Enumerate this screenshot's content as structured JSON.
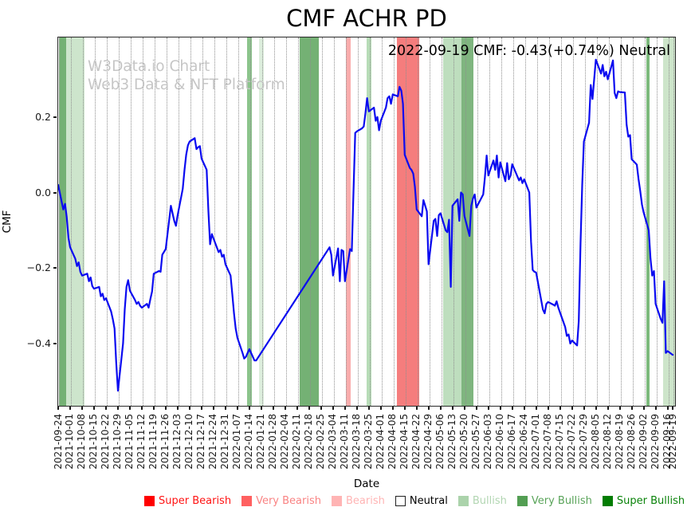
{
  "chart_data": {
    "type": "line",
    "title": "CMF ACHR PD",
    "annotation": "2022-09-19 CMF: -0.43(+0.74%) Neutral",
    "watermark_line1": "W3Data.io Chart",
    "watermark_line2": "Web3 Data & NFT Platform",
    "xlabel": "Date",
    "ylabel": "CMF",
    "grid": "vertical-dotted",
    "legend_position": "bottom",
    "line_color": "#0b0bf0",
    "ylim": [
      -0.568,
      0.412
    ],
    "ytick_values": [
      0.2,
      0.0,
      -0.2,
      -0.4
    ],
    "ytick_labels": [
      "0.2",
      "0.0",
      "−0.2",
      "−0.4"
    ],
    "x_base_date": "2021-09-24",
    "xtick_dates": [
      "2021-09-24",
      "2021-10-01",
      "2021-10-08",
      "2021-10-15",
      "2021-10-22",
      "2021-10-29",
      "2021-11-05",
      "2021-11-12",
      "2021-11-19",
      "2021-11-26",
      "2021-12-03",
      "2021-12-10",
      "2021-12-17",
      "2021-12-24",
      "2021-12-31",
      "2022-01-07",
      "2022-01-14",
      "2022-01-21",
      "2022-01-28",
      "2022-02-04",
      "2022-02-11",
      "2022-02-18",
      "2022-02-25",
      "2022-03-04",
      "2022-03-11",
      "2022-03-18",
      "2022-03-25",
      "2022-04-01",
      "2022-04-08",
      "2022-04-15",
      "2022-04-22",
      "2022-04-29",
      "2022-05-06",
      "2022-05-13",
      "2022-05-20",
      "2022-05-27",
      "2022-06-03",
      "2022-06-10",
      "2022-06-17",
      "2022-06-24",
      "2022-07-01",
      "2022-07-08",
      "2022-07-15",
      "2022-07-22",
      "2022-07-29",
      "2022-08-05",
      "2022-08-12",
      "2022-08-19",
      "2022-08-26",
      "2022-09-02",
      "2022-09-09",
      "2022-09-16",
      "2022-09-19"
    ],
    "legend": [
      {
        "label": "Super Bearish",
        "color": "#ff0000",
        "text_color": "#ff1414",
        "border": "#ff0000"
      },
      {
        "label": "Very Bearish",
        "color": "#ff6060",
        "text_color": "#f98383",
        "border": "#ff6060"
      },
      {
        "label": "Bearish",
        "color": "#ffb4b4",
        "text_color": "#ffb4b4",
        "border": "#ffb4b4"
      },
      {
        "label": "Neutral",
        "color": "#ffffff",
        "text_color": "#000000",
        "border": "#222222"
      },
      {
        "label": "Bullish",
        "color": "#abd3ab",
        "text_color": "#b2d6b2",
        "border": "#abd3ab"
      },
      {
        "label": "Very Bullish",
        "color": "#539e53",
        "text_color": "#5aa45a",
        "border": "#539e53"
      },
      {
        "label": "Super Bullish",
        "color": "#027d02",
        "text_color": "#0a830a",
        "border": "#027d02"
      }
    ],
    "bands": [
      {
        "from": "2021-09-24",
        "to": "2021-09-28",
        "level": "Very Bullish",
        "color": "#74b174"
      },
      {
        "from": "2021-09-28",
        "to": "2021-10-09",
        "level": "Bullish",
        "color": "#cde5cc"
      },
      {
        "from": "2022-01-12",
        "to": "2022-01-15",
        "level": "Very Bullish",
        "color": "#8cc48c"
      },
      {
        "from": "2022-01-19",
        "to": "2022-01-22",
        "level": "Bullish",
        "color": "#ddeedd"
      },
      {
        "from": "2022-02-12",
        "to": "2022-02-23",
        "level": "Very Bullish",
        "color": "#74b174"
      },
      {
        "from": "2022-03-11",
        "to": "2022-03-14",
        "level": "Bearish",
        "color": "#f9adad"
      },
      {
        "from": "2022-03-23",
        "to": "2022-03-26",
        "level": "Bullish",
        "color": "#b7dcb7"
      },
      {
        "from": "2022-04-10",
        "to": "2022-04-23",
        "level": "Very Bearish",
        "color": "#f57d7d"
      },
      {
        "from": "2022-05-07",
        "to": "2022-05-18",
        "level": "Bullish",
        "color": "#bedebe"
      },
      {
        "from": "2022-05-18",
        "to": "2022-05-25",
        "level": "Very Bullish",
        "color": "#7fb57f"
      },
      {
        "from": "2022-09-03",
        "to": "2022-09-05",
        "level": "Very Bullish",
        "color": "#7cb97c"
      },
      {
        "from": "2022-09-13",
        "to": "2022-09-22",
        "level": "Bullish",
        "color": "#cde5ca"
      }
    ],
    "series": [
      {
        "name": "CMF",
        "points": [
          [
            "2021-09-24",
            0.02
          ],
          [
            "2021-09-27",
            -0.045
          ],
          [
            "2021-09-28",
            -0.03
          ],
          [
            "2021-09-29",
            -0.065
          ],
          [
            "2021-09-30",
            -0.12
          ],
          [
            "2021-10-01",
            -0.145
          ],
          [
            "2021-10-04",
            -0.175
          ],
          [
            "2021-10-05",
            -0.195
          ],
          [
            "2021-10-06",
            -0.185
          ],
          [
            "2021-10-07",
            -0.21
          ],
          [
            "2021-10-08",
            -0.22
          ],
          [
            "2021-10-11",
            -0.215
          ],
          [
            "2021-10-12",
            -0.235
          ],
          [
            "2021-10-13",
            -0.225
          ],
          [
            "2021-10-14",
            -0.248
          ],
          [
            "2021-10-15",
            -0.255
          ],
          [
            "2021-10-18",
            -0.25
          ],
          [
            "2021-10-19",
            -0.275
          ],
          [
            "2021-10-20",
            -0.268
          ],
          [
            "2021-10-21",
            -0.285
          ],
          [
            "2021-10-22",
            -0.28
          ],
          [
            "2021-10-25",
            -0.315
          ],
          [
            "2021-10-26",
            -0.335
          ],
          [
            "2021-10-27",
            -0.36
          ],
          [
            "2021-10-28",
            -0.45
          ],
          [
            "2021-10-29",
            -0.525
          ],
          [
            "2021-11-01",
            -0.4
          ],
          [
            "2021-11-02",
            -0.31
          ],
          [
            "2021-11-03",
            -0.25
          ],
          [
            "2021-11-04",
            -0.232
          ],
          [
            "2021-11-05",
            -0.26
          ],
          [
            "2021-11-08",
            -0.285
          ],
          [
            "2021-11-09",
            -0.295
          ],
          [
            "2021-11-10",
            -0.29
          ],
          [
            "2021-11-11",
            -0.3
          ],
          [
            "2021-11-12",
            -0.305
          ],
          [
            "2021-11-15",
            -0.295
          ],
          [
            "2021-11-16",
            -0.305
          ],
          [
            "2021-11-17",
            -0.282
          ],
          [
            "2021-11-18",
            -0.262
          ],
          [
            "2021-11-19",
            -0.215
          ],
          [
            "2021-11-22",
            -0.208
          ],
          [
            "2021-11-23",
            -0.21
          ],
          [
            "2021-11-24",
            -0.165
          ],
          [
            "2021-11-26",
            -0.15
          ],
          [
            "2021-11-29",
            -0.035
          ],
          [
            "2021-11-30",
            -0.055
          ],
          [
            "2021-12-01",
            -0.075
          ],
          [
            "2021-12-02",
            -0.088
          ],
          [
            "2021-12-03",
            -0.06
          ],
          [
            "2021-12-06",
            0.01
          ],
          [
            "2021-12-07",
            0.06
          ],
          [
            "2021-12-08",
            0.1
          ],
          [
            "2021-12-09",
            0.125
          ],
          [
            "2021-12-10",
            0.135
          ],
          [
            "2021-12-13",
            0.144
          ],
          [
            "2021-12-14",
            0.115
          ],
          [
            "2021-12-15",
            0.12
          ],
          [
            "2021-12-16",
            0.123
          ],
          [
            "2021-12-17",
            0.09
          ],
          [
            "2021-12-20",
            0.06
          ],
          [
            "2021-12-21",
            -0.05
          ],
          [
            "2021-12-22",
            -0.137
          ],
          [
            "2021-12-23",
            -0.11
          ],
          [
            "2021-12-27",
            -0.158
          ],
          [
            "2021-12-28",
            -0.152
          ],
          [
            "2021-12-29",
            -0.17
          ],
          [
            "2021-12-30",
            -0.165
          ],
          [
            "2021-12-31",
            -0.19
          ],
          [
            "2022-01-03",
            -0.22
          ],
          [
            "2022-01-04",
            -0.27
          ],
          [
            "2022-01-05",
            -0.32
          ],
          [
            "2022-01-06",
            -0.36
          ],
          [
            "2022-01-07",
            -0.385
          ],
          [
            "2022-01-10",
            -0.425
          ],
          [
            "2022-01-11",
            -0.44
          ],
          [
            "2022-01-12",
            -0.435
          ],
          [
            "2022-01-13",
            -0.425
          ],
          [
            "2022-01-14",
            -0.415
          ],
          [
            "2022-01-17",
            -0.445
          ],
          [
            "2022-01-18",
            -0.445
          ],
          [
            "2022-03-02",
            -0.145
          ],
          [
            "2022-03-03",
            -0.165
          ],
          [
            "2022-03-04",
            -0.22
          ],
          [
            "2022-03-07",
            -0.148
          ],
          [
            "2022-03-08",
            -0.235
          ],
          [
            "2022-03-09",
            -0.152
          ],
          [
            "2022-03-10",
            -0.155
          ],
          [
            "2022-03-11",
            -0.235
          ],
          [
            "2022-03-14",
            -0.15
          ],
          [
            "2022-03-15",
            -0.155
          ],
          [
            "2022-03-16",
            0.0
          ],
          [
            "2022-03-17",
            0.158
          ],
          [
            "2022-03-18",
            0.162
          ],
          [
            "2022-03-21",
            0.17
          ],
          [
            "2022-03-22",
            0.175
          ],
          [
            "2022-03-23",
            0.21
          ],
          [
            "2022-03-24",
            0.25
          ],
          [
            "2022-03-25",
            0.215
          ],
          [
            "2022-03-28",
            0.225
          ],
          [
            "2022-03-29",
            0.19
          ],
          [
            "2022-03-30",
            0.2
          ],
          [
            "2022-03-31",
            0.165
          ],
          [
            "2022-04-01",
            0.19
          ],
          [
            "2022-04-04",
            0.225
          ],
          [
            "2022-04-05",
            0.25
          ],
          [
            "2022-04-06",
            0.255
          ],
          [
            "2022-04-07",
            0.235
          ],
          [
            "2022-04-08",
            0.26
          ],
          [
            "2022-04-11",
            0.255
          ],
          [
            "2022-04-12",
            0.28
          ],
          [
            "2022-04-13",
            0.27
          ],
          [
            "2022-04-14",
            0.235
          ],
          [
            "2022-04-15",
            0.1
          ],
          [
            "2022-04-18",
            0.065
          ],
          [
            "2022-04-19",
            0.06
          ],
          [
            "2022-04-20",
            0.05
          ],
          [
            "2022-04-21",
            0.015
          ],
          [
            "2022-04-22",
            -0.045
          ],
          [
            "2022-04-25",
            -0.063
          ],
          [
            "2022-04-26",
            -0.02
          ],
          [
            "2022-04-27",
            -0.035
          ],
          [
            "2022-04-28",
            -0.05
          ],
          [
            "2022-04-29",
            -0.19
          ],
          [
            "2022-05-02",
            -0.075
          ],
          [
            "2022-05-03",
            -0.07
          ],
          [
            "2022-05-04",
            -0.115
          ],
          [
            "2022-05-05",
            -0.06
          ],
          [
            "2022-05-06",
            -0.055
          ],
          [
            "2022-05-09",
            -0.1
          ],
          [
            "2022-05-10",
            -0.105
          ],
          [
            "2022-05-11",
            -0.072
          ],
          [
            "2022-05-12",
            -0.25
          ],
          [
            "2022-05-13",
            -0.035
          ],
          [
            "2022-05-16",
            -0.018
          ],
          [
            "2022-05-17",
            -0.075
          ],
          [
            "2022-05-18",
            0.0
          ],
          [
            "2022-05-19",
            -0.005
          ],
          [
            "2022-05-20",
            -0.062
          ],
          [
            "2022-05-23",
            -0.115
          ],
          [
            "2022-05-24",
            -0.035
          ],
          [
            "2022-05-25",
            -0.016
          ],
          [
            "2022-05-26",
            -0.005
          ],
          [
            "2022-05-27",
            -0.04
          ],
          [
            "2022-05-31",
            -0.005
          ],
          [
            "2022-06-01",
            0.04
          ],
          [
            "2022-06-02",
            0.098
          ],
          [
            "2022-06-03",
            0.045
          ],
          [
            "2022-06-06",
            0.085
          ],
          [
            "2022-06-07",
            0.06
          ],
          [
            "2022-06-08",
            0.098
          ],
          [
            "2022-06-09",
            0.04
          ],
          [
            "2022-06-10",
            0.08
          ],
          [
            "2022-06-13",
            0.03
          ],
          [
            "2022-06-14",
            0.078
          ],
          [
            "2022-06-15",
            0.035
          ],
          [
            "2022-06-16",
            0.045
          ],
          [
            "2022-06-17",
            0.075
          ],
          [
            "2022-06-21",
            0.032
          ],
          [
            "2022-06-22",
            0.04
          ],
          [
            "2022-06-23",
            0.025
          ],
          [
            "2022-06-24",
            0.035
          ],
          [
            "2022-06-27",
            0.0
          ],
          [
            "2022-06-28",
            -0.13
          ],
          [
            "2022-06-29",
            -0.205
          ],
          [
            "2022-06-30",
            -0.21
          ],
          [
            "2022-07-01",
            -0.212
          ],
          [
            "2022-07-05",
            -0.31
          ],
          [
            "2022-07-06",
            -0.32
          ],
          [
            "2022-07-07",
            -0.295
          ],
          [
            "2022-07-08",
            -0.29
          ],
          [
            "2022-07-11",
            -0.297
          ],
          [
            "2022-07-12",
            -0.3
          ],
          [
            "2022-07-13",
            -0.288
          ],
          [
            "2022-07-14",
            -0.305
          ],
          [
            "2022-07-15",
            -0.318
          ],
          [
            "2022-07-18",
            -0.356
          ],
          [
            "2022-07-19",
            -0.38
          ],
          [
            "2022-07-20",
            -0.376
          ],
          [
            "2022-07-21",
            -0.4
          ],
          [
            "2022-07-22",
            -0.392
          ],
          [
            "2022-07-25",
            -0.405
          ],
          [
            "2022-07-26",
            -0.34
          ],
          [
            "2022-07-27",
            -0.135
          ],
          [
            "2022-07-28",
            0.02
          ],
          [
            "2022-07-29",
            0.135
          ],
          [
            "2022-08-01",
            0.185
          ],
          [
            "2022-08-02",
            0.285
          ],
          [
            "2022-08-03",
            0.248
          ],
          [
            "2022-08-04",
            0.3
          ],
          [
            "2022-08-05",
            0.352
          ],
          [
            "2022-08-08",
            0.315
          ],
          [
            "2022-08-09",
            0.338
          ],
          [
            "2022-08-10",
            0.308
          ],
          [
            "2022-08-11",
            0.32
          ],
          [
            "2022-08-12",
            0.3
          ],
          [
            "2022-08-15",
            0.35
          ],
          [
            "2022-08-16",
            0.264
          ],
          [
            "2022-08-17",
            0.25
          ],
          [
            "2022-08-18",
            0.268
          ],
          [
            "2022-08-19",
            0.266
          ],
          [
            "2022-08-22",
            0.265
          ],
          [
            "2022-08-23",
            0.18
          ],
          [
            "2022-08-24",
            0.148
          ],
          [
            "2022-08-25",
            0.152
          ],
          [
            "2022-08-26",
            0.088
          ],
          [
            "2022-08-29",
            0.074
          ],
          [
            "2022-08-30",
            0.035
          ],
          [
            "2022-08-31",
            0.004
          ],
          [
            "2022-09-01",
            -0.032
          ],
          [
            "2022-09-02",
            -0.053
          ],
          [
            "2022-09-05",
            -0.1
          ],
          [
            "2022-09-06",
            -0.175
          ],
          [
            "2022-09-07",
            -0.22
          ],
          [
            "2022-09-08",
            -0.208
          ],
          [
            "2022-09-09",
            -0.295
          ],
          [
            "2022-09-12",
            -0.335
          ],
          [
            "2022-09-13",
            -0.345
          ],
          [
            "2022-09-14",
            -0.235
          ],
          [
            "2022-09-15",
            -0.425
          ],
          [
            "2022-09-16",
            -0.42
          ],
          [
            "2022-09-19",
            -0.43
          ]
        ]
      }
    ]
  }
}
